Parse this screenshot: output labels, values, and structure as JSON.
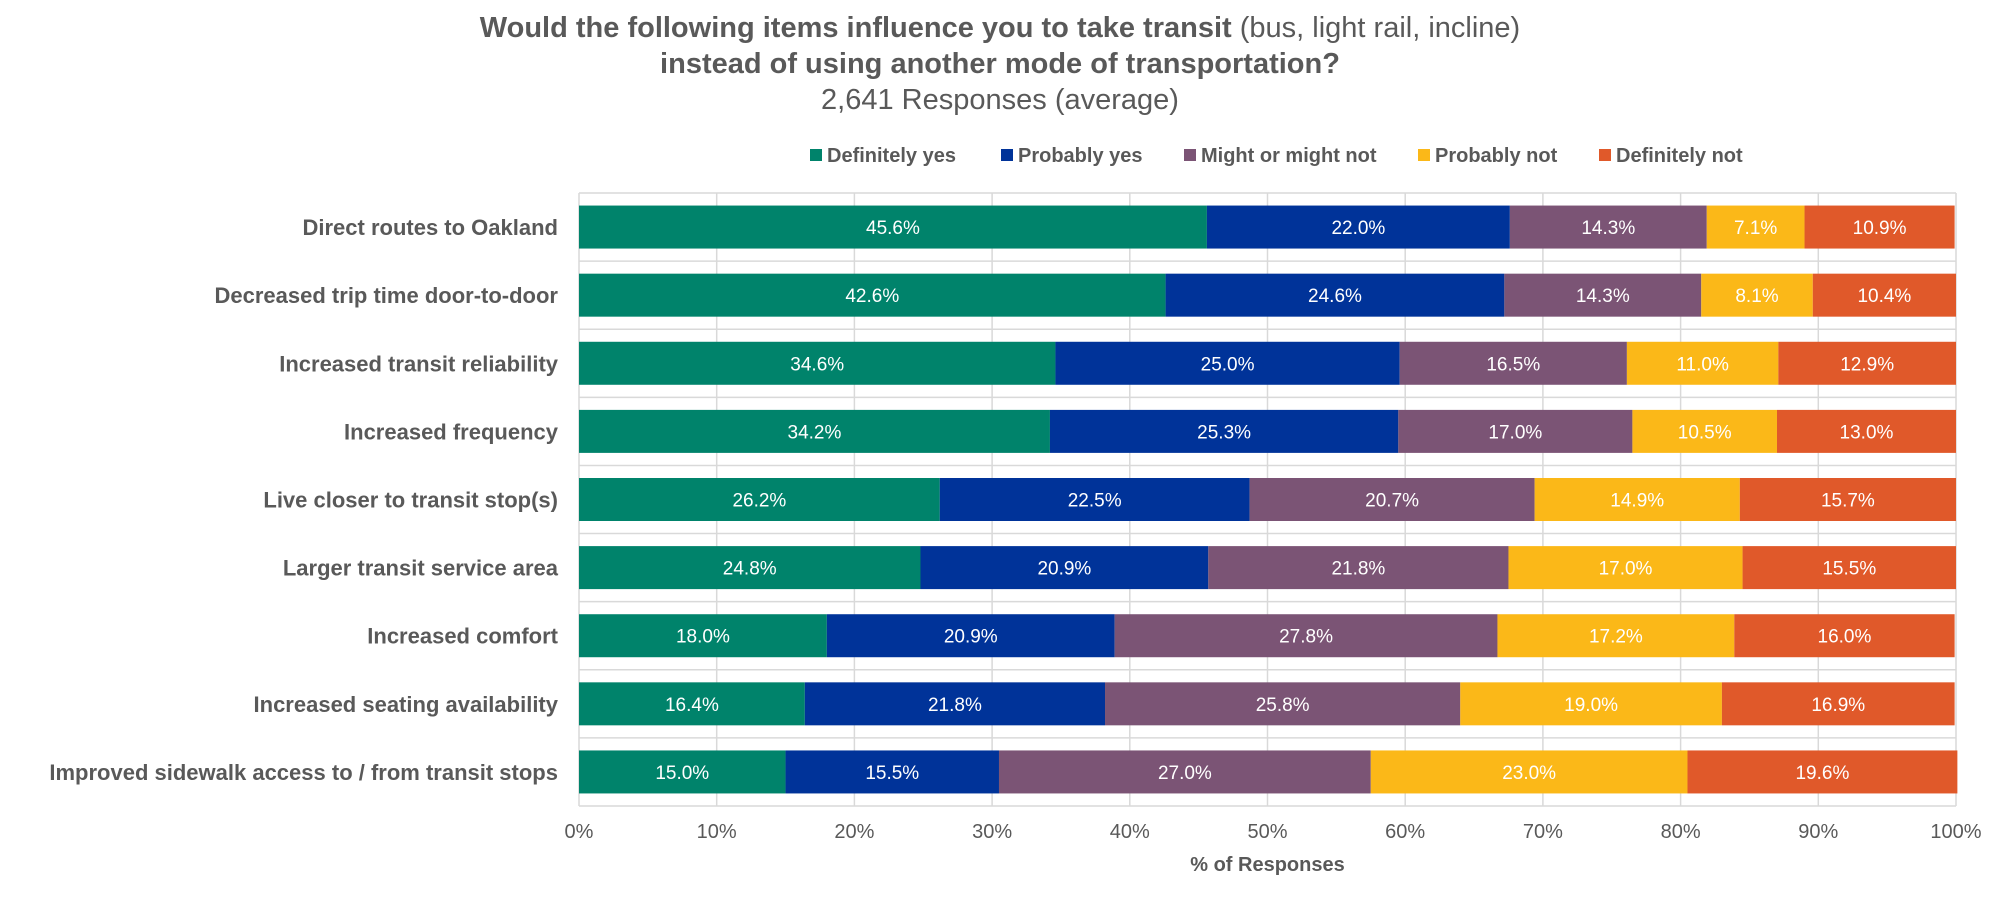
{
  "chart_data": {
    "type": "bar",
    "orientation": "horizontal",
    "stacked": true,
    "title": {
      "line1_bold": "Would the following items influence you to take transit",
      "line1_normal": "(bus, light rail, incline)",
      "line2_bold": "instead of using another mode of transportation?",
      "subtitle": "2,641 Responses (average)"
    },
    "xlabel": "% of Responses",
    "ylabel": "",
    "xlim": [
      0,
      100
    ],
    "x_ticks": [
      "0%",
      "10%",
      "20%",
      "30%",
      "40%",
      "50%",
      "60%",
      "70%",
      "80%",
      "90%",
      "100%"
    ],
    "grid": true,
    "legend_position": "top",
    "categories": [
      "Direct routes to Oakland",
      "Decreased trip time door-to-door",
      "Increased transit reliability",
      "Increased frequency",
      "Live closer to transit stop(s)",
      "Larger transit service area",
      "Increased comfort",
      "Increased seating availability",
      "Improved sidewalk access to / from transit stops"
    ],
    "series": [
      {
        "name": "Definitely yes",
        "color": "#00836b",
        "values": [
          45.6,
          42.6,
          34.6,
          34.2,
          26.2,
          24.8,
          18.0,
          16.4,
          15.0
        ],
        "labels": [
          "45.6%",
          "42.6%",
          "34.6%",
          "34.2%",
          "26.2%",
          "24.8%",
          "18.0%",
          "16.4%",
          "15.0%"
        ]
      },
      {
        "name": "Probably yes",
        "color": "#003399",
        "values": [
          22.0,
          24.6,
          25.0,
          25.3,
          22.5,
          20.9,
          20.9,
          21.8,
          15.5
        ],
        "labels": [
          "22.0%",
          "24.6%",
          "25.0%",
          "25.3%",
          "22.5%",
          "20.9%",
          "20.9%",
          "21.8%",
          "15.5%"
        ]
      },
      {
        "name": "Might or might not",
        "color": "#7b5475",
        "values": [
          14.3,
          14.3,
          16.5,
          17.0,
          20.7,
          21.8,
          27.8,
          25.8,
          27.0
        ],
        "labels": [
          "14.3%",
          "14.3%",
          "16.5%",
          "17.0%",
          "20.7%",
          "21.8%",
          "27.8%",
          "25.8%",
          "27.0%"
        ]
      },
      {
        "name": "Probably not",
        "color": "#fbb818",
        "values": [
          7.1,
          8.1,
          11.0,
          10.5,
          14.9,
          17.0,
          17.2,
          19.0,
          23.0
        ],
        "labels": [
          "7.1%",
          "8.1%",
          "11.0%",
          "10.5%",
          "14.9%",
          "17.0%",
          "17.2%",
          "19.0%",
          "23.0%"
        ]
      },
      {
        "name": "Definitely not",
        "color": "#e0592a",
        "values": [
          10.9,
          10.4,
          12.9,
          13.0,
          15.7,
          15.5,
          16.0,
          16.9,
          19.6
        ],
        "labels": [
          "10.9%",
          "10.4%",
          "12.9%",
          "13.0%",
          "15.7%",
          "15.5%",
          "16.0%",
          "16.9%",
          "19.6%"
        ]
      }
    ]
  }
}
